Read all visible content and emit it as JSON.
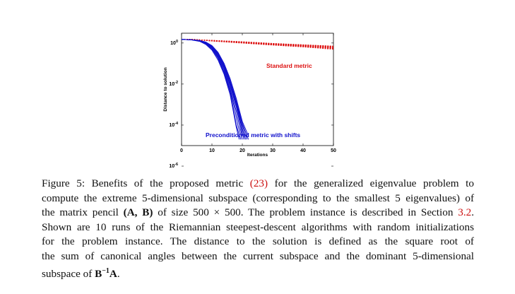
{
  "chart_data": {
    "type": "line",
    "title": "",
    "xlabel": "Iterations",
    "ylabel": "Distance to solution",
    "xlim": [
      0,
      50
    ],
    "ylim": [
      1e-05,
      3
    ],
    "yscale": "log",
    "xticks": [
      "0",
      "10",
      "20",
      "30",
      "40",
      "50"
    ],
    "yticks": [
      "10^0",
      "10^-2",
      "10^-4",
      "10^-6"
    ],
    "grid": false,
    "annotations": [
      {
        "text": "Standard metric",
        "color": "#dd1111"
      },
      {
        "text": "Preconditioned metric with shifts",
        "color": "#1111cc"
      }
    ],
    "series_groups": [
      {
        "label": "Standard metric",
        "color": "#dd1111",
        "style": "dashed",
        "runs": 10,
        "x": [
          0,
          4,
          10,
          20,
          30,
          40,
          50
        ],
        "y_range": [
          [
            1.5,
            1.5
          ],
          [
            1.5,
            1.45
          ],
          [
            1.25,
            1.35
          ],
          [
            1.0,
            1.15
          ],
          [
            0.8,
            0.95
          ],
          [
            0.65,
            0.82
          ],
          [
            0.5,
            0.7
          ]
        ]
      },
      {
        "label": "Preconditioned metric with shifts",
        "color": "#1111cc",
        "style": "solid",
        "runs": 10,
        "series": [
          {
            "x": [
              0,
              3,
              6,
              8,
              10,
              12,
              14,
              16,
              17,
              18,
              19
            ],
            "y": [
              1.5,
              1.45,
              1.2,
              0.85,
              0.45,
              0.15,
              0.03,
              0.003,
              0.0005,
              8e-05,
              2e-05
            ]
          },
          {
            "x": [
              0,
              3,
              6,
              8,
              10,
              12,
              14,
              16,
              17,
              18,
              19.5
            ],
            "y": [
              1.5,
              1.45,
              1.25,
              0.9,
              0.5,
              0.18,
              0.035,
              0.004,
              0.0007,
              0.0001,
              2e-05
            ]
          },
          {
            "x": [
              0,
              3,
              6,
              8,
              10,
              12,
              14,
              16,
              17.5,
              18.5,
              20
            ],
            "y": [
              1.5,
              1.45,
              1.25,
              0.95,
              0.55,
              0.2,
              0.04,
              0.005,
              0.0006,
              0.0001,
              2e-05
            ]
          },
          {
            "x": [
              0,
              3,
              6,
              8,
              10,
              12,
              14,
              16,
              18,
              19,
              20
            ],
            "y": [
              1.5,
              1.45,
              1.3,
              1.0,
              0.6,
              0.22,
              0.05,
              0.006,
              0.0005,
              0.0001,
              3e-05
            ]
          },
          {
            "x": [
              0,
              3,
              6,
              8,
              10,
              12,
              14,
              16,
              18,
              19.5,
              20.5
            ],
            "y": [
              1.5,
              1.45,
              1.3,
              1.0,
              0.62,
              0.25,
              0.06,
              0.008,
              0.0008,
              8e-05,
              2e-05
            ]
          },
          {
            "x": [
              0,
              3,
              6,
              8,
              10,
              12,
              14,
              16,
              18,
              20,
              21
            ],
            "y": [
              1.5,
              1.45,
              1.3,
              1.05,
              0.65,
              0.28,
              0.07,
              0.01,
              0.001,
              7e-05,
              2e-05
            ]
          },
          {
            "x": [
              0,
              3,
              6,
              8,
              10,
              12,
              14,
              16,
              18,
              20,
              21.5
            ],
            "y": [
              1.5,
              1.45,
              1.3,
              1.05,
              0.7,
              0.3,
              0.08,
              0.012,
              0.0012,
              0.0001,
              2e-05
            ]
          },
          {
            "x": [
              0,
              3,
              6,
              8,
              10,
              12,
              14,
              16,
              18,
              20,
              22
            ],
            "y": [
              1.5,
              1.45,
              1.32,
              1.1,
              0.72,
              0.32,
              0.09,
              0.015,
              0.0015,
              0.00012,
              2e-05
            ]
          },
          {
            "x": [
              0,
              3,
              6,
              8,
              10,
              12,
              14,
              16,
              18,
              20,
              22
            ],
            "y": [
              1.5,
              1.45,
              1.32,
              1.1,
              0.75,
              0.35,
              0.1,
              0.018,
              0.002,
              0.00015,
              3e-05
            ]
          },
          {
            "x": [
              0,
              3,
              6,
              8,
              10,
              12,
              14,
              16,
              18,
              20,
              21
            ],
            "y": [
              1.5,
              1.45,
              1.3,
              1.05,
              0.68,
              0.26,
              0.065,
              0.009,
              0.0009,
              6e-05,
              2e-05
            ]
          }
        ]
      }
    ]
  },
  "caption": {
    "lines": [
      [
        {
          "t": "Figure 5:  Benefits of the proposed metric "
        },
        {
          "t": "(23)",
          "c": "cite"
        },
        {
          "t": " for the generalized eigenvalue problem to"
        }
      ],
      [
        {
          "t": "compute the extreme 5-dimensional subspace (corresponding to the smallest 5 eigenvalues) of"
        }
      ],
      [
        {
          "t": "the matrix pencil "
        },
        {
          "t": "(A, B)",
          "c": "bold"
        },
        {
          "t": " of size 500 × 500.  The problem instance is described in Section "
        },
        {
          "t": "3.2",
          "c": "cite"
        },
        {
          "t": "."
        }
      ],
      [
        {
          "t": "Shown are 10 runs of the Riemannian steepest-descent algorithms with random initializations"
        }
      ],
      [
        {
          "t": "for the problem instance.  The distance to the solution is defined as the square root of"
        }
      ],
      [
        {
          "t": "the sum of canonical angles between the current subspace and the dominant 5-dimensional"
        }
      ],
      [
        {
          "t": "subspace of "
        },
        {
          "t": "B",
          "c": "bold"
        },
        {
          "t": "−1",
          "c": "sup"
        },
        {
          "t": "A",
          "c": "bold"
        },
        {
          "t": "."
        }
      ]
    ]
  }
}
